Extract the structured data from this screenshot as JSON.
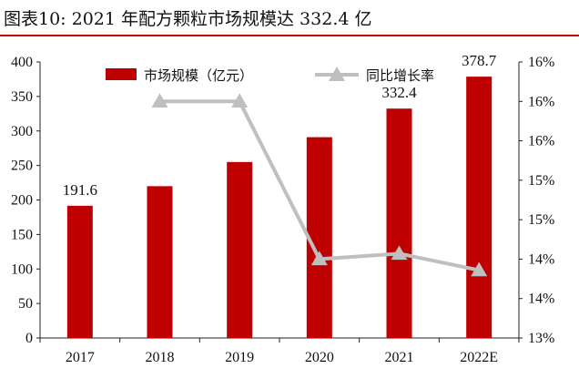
{
  "figure": {
    "title": "图表10:   2021 年配方颗粒市场规模达 332.4 亿",
    "accent_color": "#bf0000"
  },
  "chart_data": {
    "type": "bar+line",
    "title": "",
    "categories": [
      "2017",
      "2018",
      "2019",
      "2020",
      "2021",
      "2022E"
    ],
    "series": [
      {
        "name": "市场规模（亿元）",
        "type": "bar",
        "axis": "left",
        "color": "#bf0000",
        "values": [
          191.6,
          220,
          255,
          291,
          332.4,
          378.7
        ],
        "data_labels": {
          "0": "191.6",
          "4": "332.4",
          "5": "378.7"
        }
      },
      {
        "name": "同比增长率",
        "type": "line",
        "axis": "right",
        "color": "#bfbfbf",
        "marker": "triangle",
        "values": [
          null,
          0.16,
          0.16,
          0.14,
          0.1407,
          0.1386
        ]
      }
    ],
    "y_left": {
      "min": 0,
      "max": 400,
      "ticks": [
        0,
        50,
        100,
        150,
        200,
        250,
        300,
        350,
        400
      ]
    },
    "y_right": {
      "min": 0.13,
      "max": 0.165,
      "ticks": [
        0.13,
        0.135,
        0.14,
        0.145,
        0.15,
        0.155,
        0.16,
        0.165
      ],
      "tick_labels": [
        "13%",
        "14%",
        "14%",
        "15%",
        "15%",
        "16%",
        "16%",
        "16%"
      ]
    },
    "legend": {
      "position": "top",
      "items": [
        "市场规模（亿元）",
        "同比增长率"
      ]
    },
    "grid": false
  }
}
